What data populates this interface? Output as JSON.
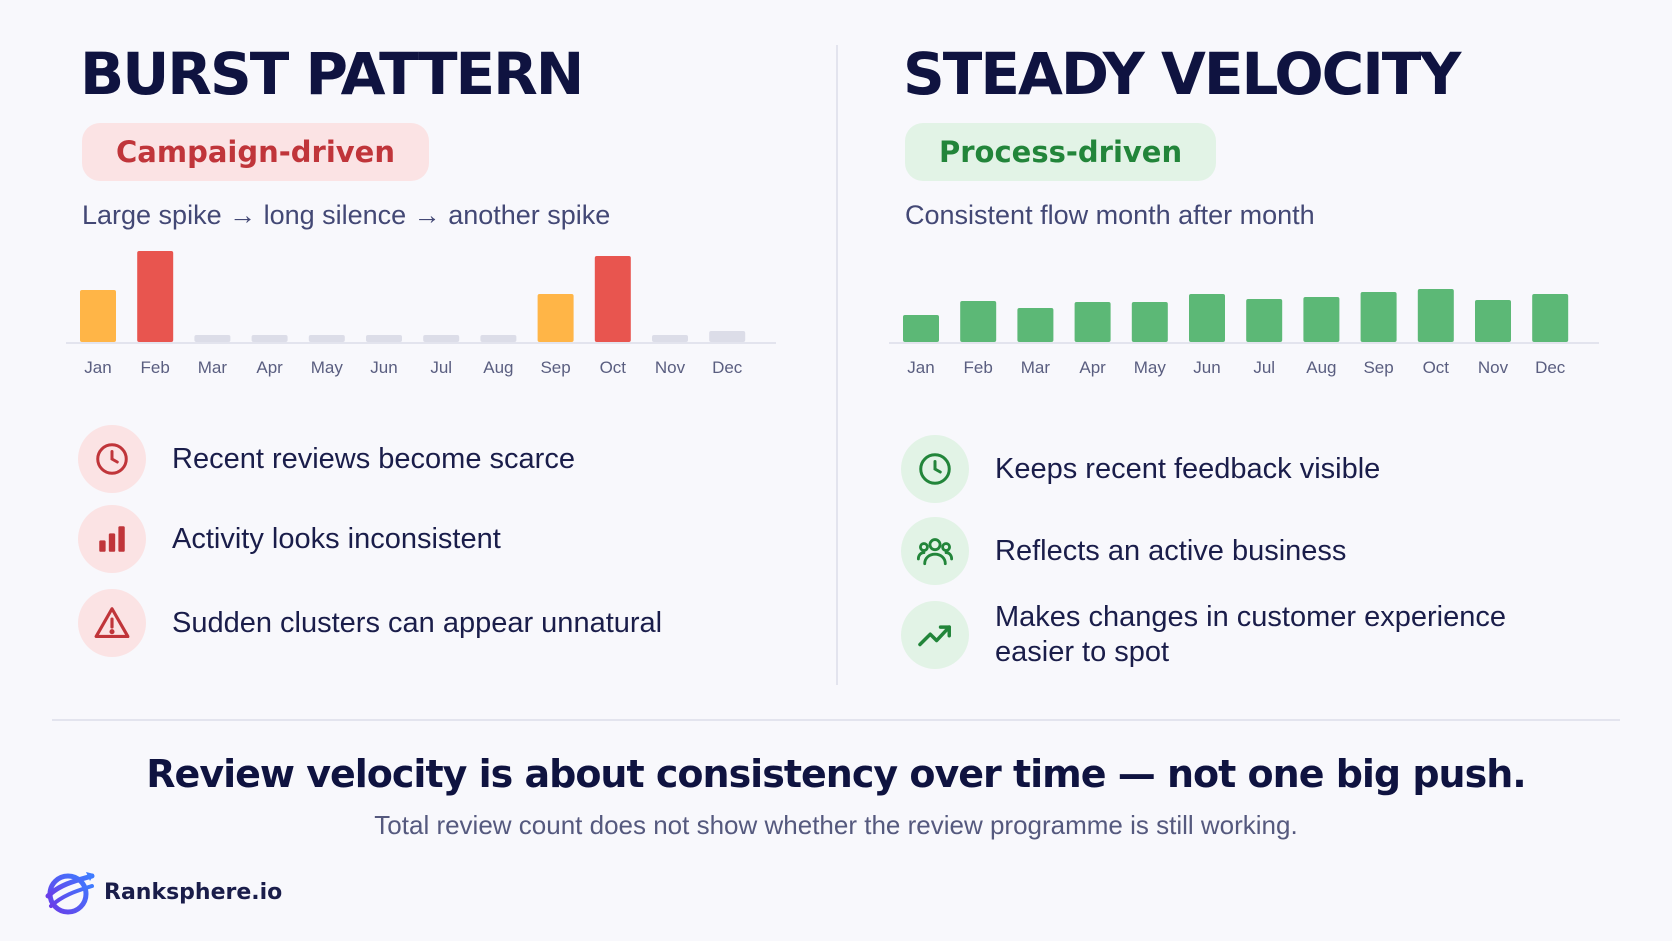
{
  "left": {
    "title": "BURST PATTERN",
    "badge": "Campaign-driven",
    "subtitle": "Large spike → long silence → another spike",
    "features": [
      {
        "icon": "clock-icon",
        "text": "Recent reviews become scarce"
      },
      {
        "icon": "bar-chart-icon",
        "text": "Activity looks inconsistent"
      },
      {
        "icon": "warning-icon",
        "text": "Sudden clusters can appear unnatural"
      }
    ]
  },
  "right": {
    "title": "STEADY VELOCITY",
    "badge": "Process-driven",
    "subtitle": "Consistent flow month after month",
    "features": [
      {
        "icon": "clock-icon",
        "text": "Keeps recent feedback visible"
      },
      {
        "icon": "users-icon",
        "text": "Reflects an active business"
      },
      {
        "icon": "trend-up-icon",
        "text": "Makes changes in customer experience easier to spot"
      }
    ]
  },
  "headline": "Review velocity is about consistency over time — not one big push.",
  "subline": "Total review count does not show whether the review programme is still working.",
  "brand": {
    "name": "Ranksphere.io",
    "icon": "globe-logo-icon"
  },
  "colors": {
    "red": "#e8554f",
    "orange": "#ffb547",
    "green": "#5cb876",
    "faint": "#dcdde8",
    "navy": "#0f1340"
  },
  "chart_data": [
    {
      "type": "bar",
      "categories": [
        "Jan",
        "Feb",
        "Mar",
        "Apr",
        "May",
        "Jun",
        "Jul",
        "Aug",
        "Sep",
        "Oct",
        "Nov",
        "Dec"
      ],
      "values": [
        52,
        91,
        7,
        7,
        7,
        7,
        7,
        7,
        48,
        86,
        7,
        11
      ],
      "bar_colors": [
        "orange",
        "red",
        "faint",
        "faint",
        "faint",
        "faint",
        "faint",
        "faint",
        "orange",
        "red",
        "faint",
        "faint"
      ],
      "ylim": [
        0,
        100
      ]
    },
    {
      "type": "bar",
      "categories": [
        "Jan",
        "Feb",
        "Mar",
        "Apr",
        "May",
        "Jun",
        "Jul",
        "Aug",
        "Sep",
        "Oct",
        "Nov",
        "Dec"
      ],
      "values": [
        27,
        41,
        34,
        40,
        40,
        48,
        43,
        45,
        50,
        53,
        42,
        48
      ],
      "bar_colors": [
        "green",
        "green",
        "green",
        "green",
        "green",
        "green",
        "green",
        "green",
        "green",
        "green",
        "green",
        "green"
      ],
      "ylim": [
        0,
        100
      ]
    }
  ]
}
